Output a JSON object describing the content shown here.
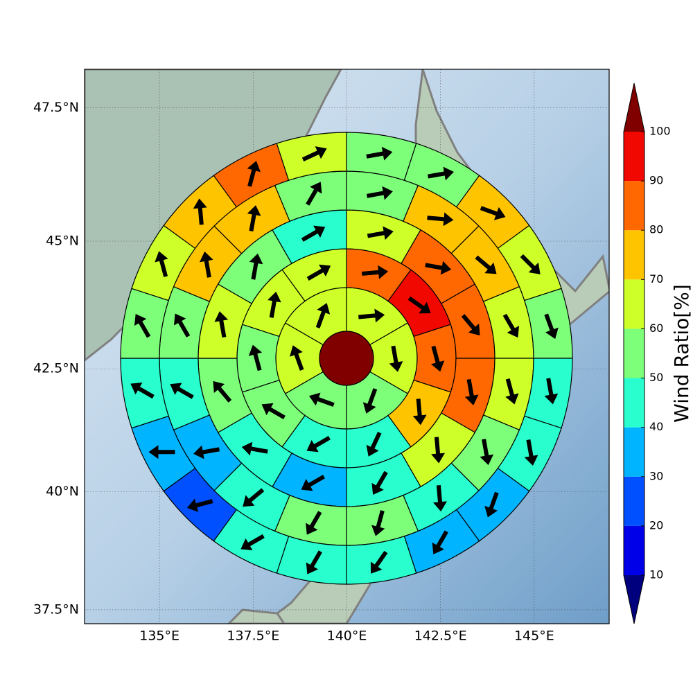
{
  "chart_data": {
    "type": "polar-sectors",
    "projection": "mercator",
    "grid": true,
    "xlim": [
      133,
      147
    ],
    "ylim": [
      37.2,
      48.2
    ],
    "xticks": [
      {
        "value": 135,
        "label": "135°E"
      },
      {
        "value": 137.5,
        "label": "137.5°E"
      },
      {
        "value": 140,
        "label": "140°E"
      },
      {
        "value": 142.5,
        "label": "142.5°E"
      },
      {
        "value": 145,
        "label": "145°E"
      }
    ],
    "yticks": [
      {
        "value": 37.5,
        "label": "37.5°N"
      },
      {
        "value": 40,
        "label": "40°N"
      },
      {
        "value": 42.5,
        "label": "42.5°N"
      },
      {
        "value": 45,
        "label": "45°N"
      },
      {
        "value": 47.5,
        "label": "47.5°N"
      }
    ],
    "center_value": 105,
    "rings": [
      {
        "values": [
          65,
          65,
          55,
          55,
          65,
          65
        ],
        "directions": [
          85,
          170,
          200,
          290,
          340,
          20
        ]
      },
      {
        "values": [
          85,
          95,
          85,
          75,
          45,
          45,
          55,
          55,
          65,
          65
        ],
        "directions": [
          85,
          125,
          165,
          175,
          205,
          240,
          300,
          345,
          10,
          60
        ]
      },
      {
        "values": [
          65,
          85,
          85,
          85,
          65,
          45,
          35,
          45,
          55,
          65,
          55,
          45
        ],
        "directions": [
          80,
          100,
          140,
          170,
          175,
          210,
          240,
          280,
          320,
          350,
          10,
          60
        ]
      },
      {
        "values": [
          55,
          75,
          75,
          65,
          65,
          55,
          45,
          55,
          55,
          45,
          35,
          45,
          55,
          75,
          75,
          55
        ],
        "directions": [
          80,
          95,
          130,
          150,
          165,
          170,
          175,
          195,
          210,
          230,
          260,
          300,
          330,
          350,
          10,
          30
        ]
      },
      {
        "values": [
          55,
          55,
          75,
          65,
          55,
          45,
          45,
          35,
          35,
          45,
          45,
          45,
          25,
          35,
          45,
          55,
          65,
          75,
          85,
          65
        ],
        "directions": [
          80,
          80,
          110,
          135,
          160,
          170,
          170,
          200,
          210,
          215,
          210,
          240,
          255,
          270,
          300,
          330,
          345,
          355,
          15,
          65
        ]
      }
    ],
    "colorbar": {
      "label": "Wind Ratio[%]",
      "ticks": [
        10,
        20,
        30,
        40,
        50,
        60,
        70,
        80,
        90,
        100
      ],
      "colors": [
        "#00007f",
        "#0000e8",
        "#0050ff",
        "#00b4ff",
        "#29ffce",
        "#7dff7a",
        "#ceff29",
        "#ffc400",
        "#ff6800",
        "#f10800",
        "#800000"
      ],
      "extend": "both"
    }
  }
}
